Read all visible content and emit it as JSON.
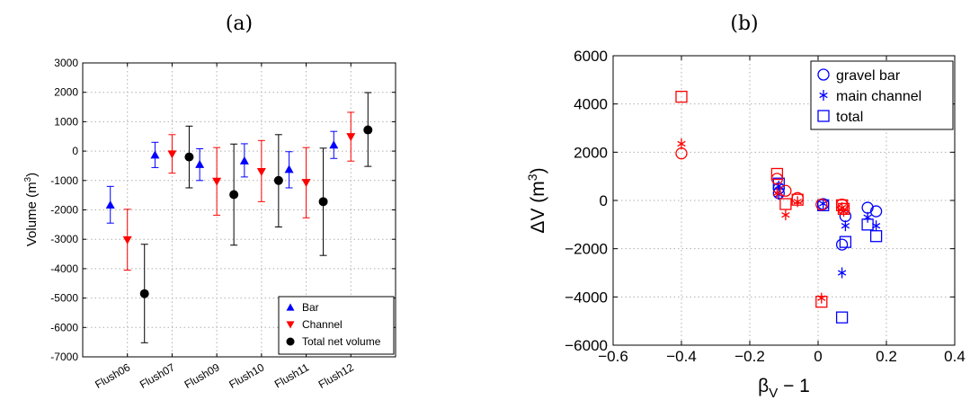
{
  "chart_data": [
    {
      "type": "scatter",
      "panel_label": "(a)",
      "ylabel": "Volume (m",
      "ylabel_sup": "3",
      "ylabel_close": ")",
      "ylim": [
        -7000,
        3000
      ],
      "yticks": [
        -7000,
        -6000,
        -5000,
        -4000,
        -3000,
        -2000,
        -1000,
        0,
        1000,
        2000,
        3000
      ],
      "categories": [
        "Flush06",
        "Flush07",
        "Flush09",
        "Flush10",
        "Flush11",
        "Flush12"
      ],
      "grid": true,
      "legend_position": "bottom-right",
      "series": [
        {
          "name": "Bar",
          "color": "#0000ff",
          "marker": "triangle-up",
          "values": [
            -1830,
            -130,
            -450,
            -330,
            -620,
            210
          ],
          "lower": [
            -2450,
            -560,
            -1000,
            -880,
            -1250,
            -250
          ],
          "upper": [
            -1200,
            300,
            80,
            250,
            -20,
            670
          ]
        },
        {
          "name": "Channel",
          "color": "#ff0000",
          "marker": "triangle-down",
          "values": [
            -3020,
            -100,
            -1030,
            -700,
            -1070,
            490
          ],
          "lower": [
            -4050,
            -750,
            -2180,
            -1720,
            -2270,
            -340
          ],
          "upper": [
            -1980,
            560,
            120,
            360,
            120,
            1320
          ]
        },
        {
          "name": "Total net volume",
          "color": "#000000",
          "marker": "circle",
          "values": [
            -4850,
            -200,
            -1480,
            -1000,
            -1720,
            720
          ],
          "lower": [
            -6520,
            -1250,
            -3200,
            -2580,
            -3550,
            -520
          ],
          "upper": [
            -3170,
            850,
            240,
            560,
            100,
            1990
          ]
        }
      ]
    },
    {
      "type": "scatter",
      "panel_label": "(b)",
      "xlabel": "β",
      "xlabel_sub": "V",
      "xlabel_tail": " − 1",
      "ylabel": "ΔV (m",
      "ylabel_sup": "3",
      "ylabel_close": ")",
      "xlim": [
        -0.6,
        0.4
      ],
      "xticks": [
        -0.6,
        -0.4,
        -0.2,
        0,
        0.2,
        0.4
      ],
      "ylim": [
        -6000,
        6000
      ],
      "yticks": [
        -6000,
        -4000,
        -2000,
        0,
        2000,
        4000,
        6000
      ],
      "grid": true,
      "legend_position": "top-right",
      "legend": [
        {
          "name": "gravel bar",
          "marker": "circle",
          "color": "#0000ff"
        },
        {
          "name": "main channel",
          "marker": "asterisk",
          "color": "#0000ff"
        },
        {
          "name": "total",
          "marker": "square",
          "color": "#0000ff"
        }
      ],
      "series": [
        {
          "marker": "circle",
          "color": "#0000ff",
          "points": [
            [
              -0.115,
              300
            ],
            [
              -0.115,
              500
            ],
            [
              0.015,
              -150
            ],
            [
              0.07,
              -1830
            ],
            [
              0.08,
              -650
            ],
            [
              0.145,
              -300
            ],
            [
              0.17,
              -450
            ]
          ]
        },
        {
          "marker": "asterisk",
          "color": "#0000ff",
          "points": [
            [
              -0.115,
              250
            ],
            [
              -0.115,
              600
            ],
            [
              0.015,
              -130
            ],
            [
              0.07,
              -3000
            ],
            [
              0.08,
              -1050
            ],
            [
              0.145,
              -700
            ],
            [
              0.17,
              -1050
            ]
          ]
        },
        {
          "marker": "square",
          "color": "#0000ff",
          "points": [
            [
              -0.115,
              700
            ],
            [
              0.015,
              -200
            ],
            [
              0.07,
              -4850
            ],
            [
              0.08,
              -1720
            ],
            [
              0.145,
              -1000
            ],
            [
              0.17,
              -1480
            ]
          ]
        },
        {
          "marker": "circle",
          "color": "#ff0000",
          "points": [
            [
              -0.4,
              1950
            ],
            [
              -0.12,
              900
            ],
            [
              -0.095,
              400
            ],
            [
              -0.06,
              100
            ],
            [
              0.01,
              -170
            ],
            [
              0.07,
              -170
            ],
            [
              0.075,
              -350
            ]
          ]
        },
        {
          "marker": "asterisk",
          "color": "#ff0000",
          "points": [
            [
              -0.4,
              2350
            ],
            [
              -0.12,
              300
            ],
            [
              -0.095,
              -600
            ],
            [
              -0.06,
              -50
            ],
            [
              0.01,
              -4050
            ],
            [
              0.07,
              -300
            ],
            [
              0.075,
              -450
            ]
          ]
        },
        {
          "marker": "square",
          "color": "#ff0000",
          "points": [
            [
              -0.4,
              4300
            ],
            [
              -0.12,
              1100
            ],
            [
              -0.095,
              -150
            ],
            [
              -0.06,
              30
            ],
            [
              0.01,
              -4200
            ],
            [
              0.07,
              -200
            ],
            [
              0.075,
              -350
            ]
          ]
        }
      ]
    }
  ]
}
